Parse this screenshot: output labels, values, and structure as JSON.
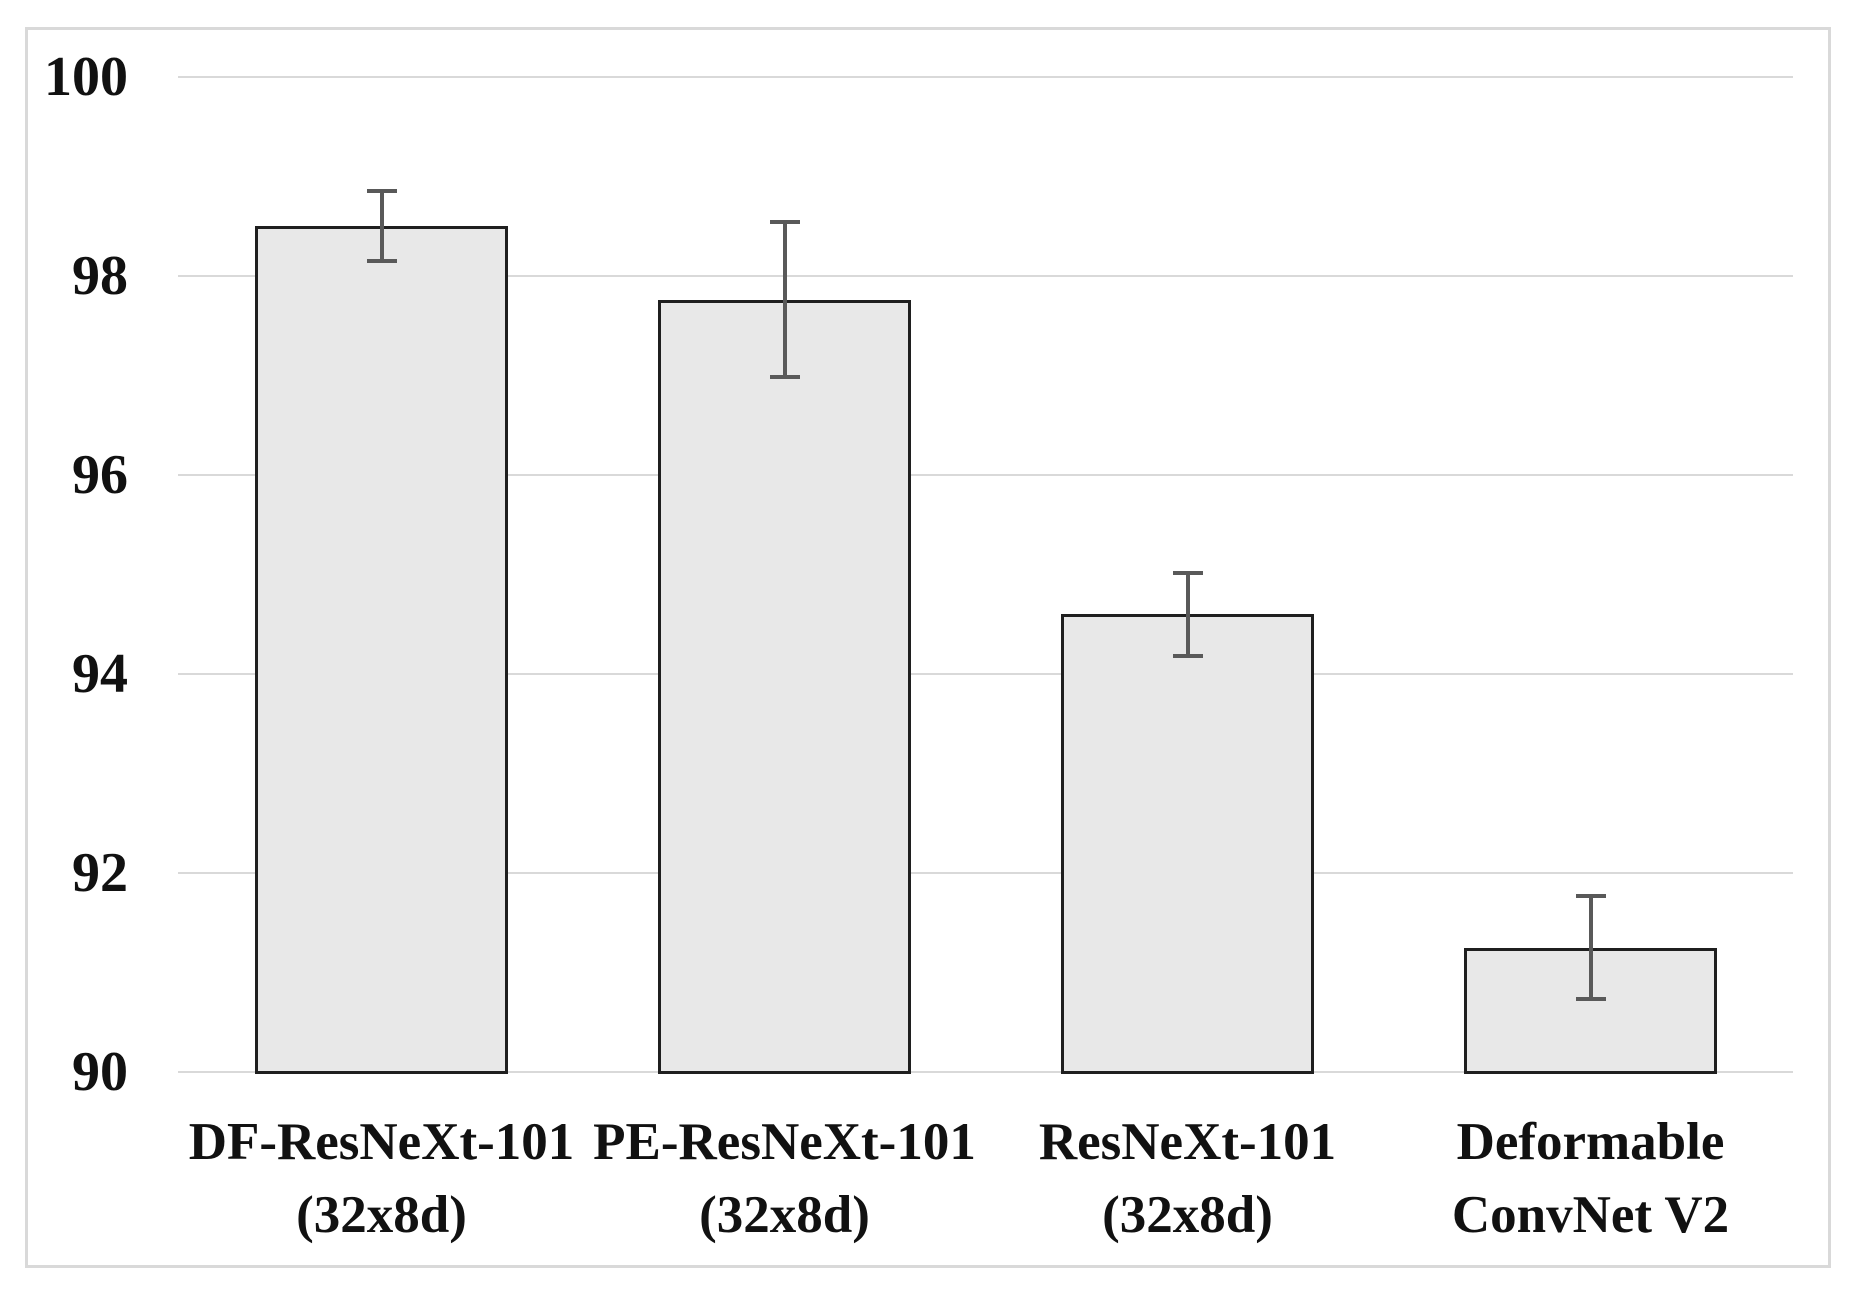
{
  "figure": {
    "background_color": "#ffffff",
    "border_color": "#d9d9d9"
  },
  "chart_data": {
    "type": "bar",
    "title": "",
    "xlabel": "",
    "ylabel": "",
    "categories": [
      "DF-ResNeXt-101\n(32x8d)",
      "PE-ResNeXt-101\n(32x8d)",
      "ResNeXt-101\n(32x8d)",
      "Deformable\nConvNet V2"
    ],
    "values": [
      98.5,
      97.76,
      94.6,
      91.25
    ],
    "error_bars": [
      0.35,
      0.78,
      0.42,
      0.52
    ],
    "y_ticks": [
      100,
      98,
      96,
      94,
      92,
      90
    ],
    "ylim": [
      90,
      100
    ],
    "grid": "horizontal",
    "legend_position": "none",
    "bar_fill_color": "#e8e8e8",
    "bar_border_color": "#1f1f1f",
    "gridline_color": "#d9d9d9",
    "error_bar_color": "#595959",
    "text_color": "#111111"
  }
}
